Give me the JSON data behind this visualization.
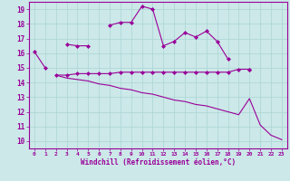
{
  "xlabel": "Windchill (Refroidissement éolien,°C)",
  "x_values": [
    0,
    1,
    2,
    3,
    4,
    5,
    6,
    7,
    8,
    9,
    10,
    11,
    12,
    13,
    14,
    15,
    16,
    17,
    18,
    19,
    20,
    21,
    22,
    23
  ],
  "line1": [
    16.1,
    15.0,
    null,
    16.6,
    16.5,
    16.5,
    null,
    17.9,
    18.1,
    18.1,
    19.2,
    19.0,
    16.5,
    16.8,
    17.4,
    17.1,
    17.5,
    16.8,
    15.6,
    null,
    14.9,
    null,
    null,
    null
  ],
  "line2": [
    null,
    null,
    14.5,
    14.5,
    14.6,
    14.6,
    14.6,
    14.6,
    14.7,
    14.7,
    14.7,
    14.7,
    14.7,
    14.7,
    14.7,
    14.7,
    14.7,
    14.7,
    14.7,
    14.9,
    14.9,
    null,
    null,
    null
  ],
  "line3": [
    null,
    null,
    14.5,
    14.3,
    14.2,
    14.1,
    13.9,
    13.8,
    13.6,
    13.5,
    13.3,
    13.2,
    13.0,
    12.8,
    12.7,
    12.5,
    12.4,
    12.2,
    12.0,
    11.8,
    12.9,
    11.1,
    10.4,
    10.1
  ],
  "line_color": "#990099",
  "bg_color": "#cce8e8",
  "grid_color": "#aad4d4",
  "ylim": [
    9.5,
    19.5
  ],
  "yticks": [
    10,
    11,
    12,
    13,
    14,
    15,
    16,
    17,
    18,
    19
  ],
  "xlim": [
    -0.5,
    23.5
  ],
  "xticks": [
    0,
    1,
    2,
    3,
    4,
    5,
    6,
    7,
    8,
    9,
    10,
    11,
    12,
    13,
    14,
    15,
    16,
    17,
    18,
    19,
    20,
    21,
    22,
    23
  ]
}
